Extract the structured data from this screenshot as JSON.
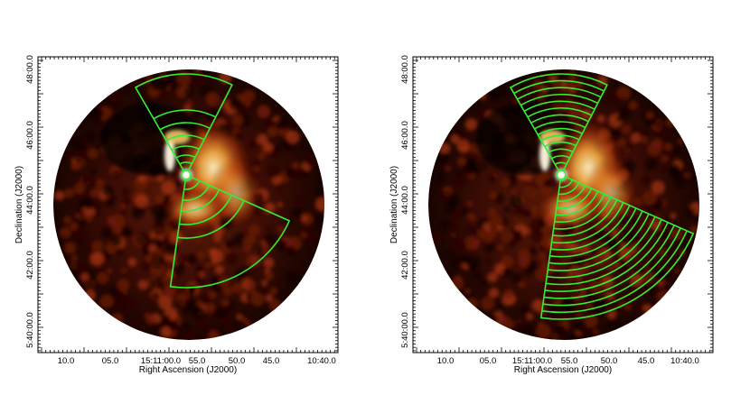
{
  "figure": {
    "panels": [
      {
        "id": "left",
        "image_type": "x-ray intensity map with sector annuli overlay",
        "colormap": "black-red-yellow-white heat",
        "overlay_color": "#33ee33",
        "xlabel": "Right Ascension (J2000)",
        "ylabel": "Declination (J2000)",
        "x_ticks": [
          "10.0",
          "05.0",
          "15:11:00.0",
          "55.0",
          "50.0",
          "45.0",
          "10:40.0"
        ],
        "y_ticks": [
          "48:00.0",
          "46:00.0",
          "44:00.0",
          "42:00.0",
          "5:40:00.0"
        ],
        "sectors": [
          {
            "name": "north-sector",
            "annuli_count": 5
          },
          {
            "name": "south-east-sector",
            "annuli_count": 6
          }
        ]
      },
      {
        "id": "right",
        "image_type": "x-ray intensity map with sector annuli overlay",
        "colormap": "black-red-yellow-white heat",
        "overlay_color": "#33ee33",
        "xlabel": "Right Ascension (J2000)",
        "ylabel": "Declination (J2000)",
        "x_ticks": [
          "10.0",
          "05.0",
          "15:11:00.0",
          "55.0",
          "50.0",
          "45.0",
          "10:40.0"
        ],
        "y_ticks": [
          "48:00.0",
          "46:00.0",
          "44:00.0",
          "42:00.0",
          "5:40:00.0"
        ],
        "sectors": [
          {
            "name": "north-sector",
            "annuli_count": 14
          },
          {
            "name": "south-east-sector",
            "annuli_count": 20
          }
        ]
      }
    ]
  }
}
